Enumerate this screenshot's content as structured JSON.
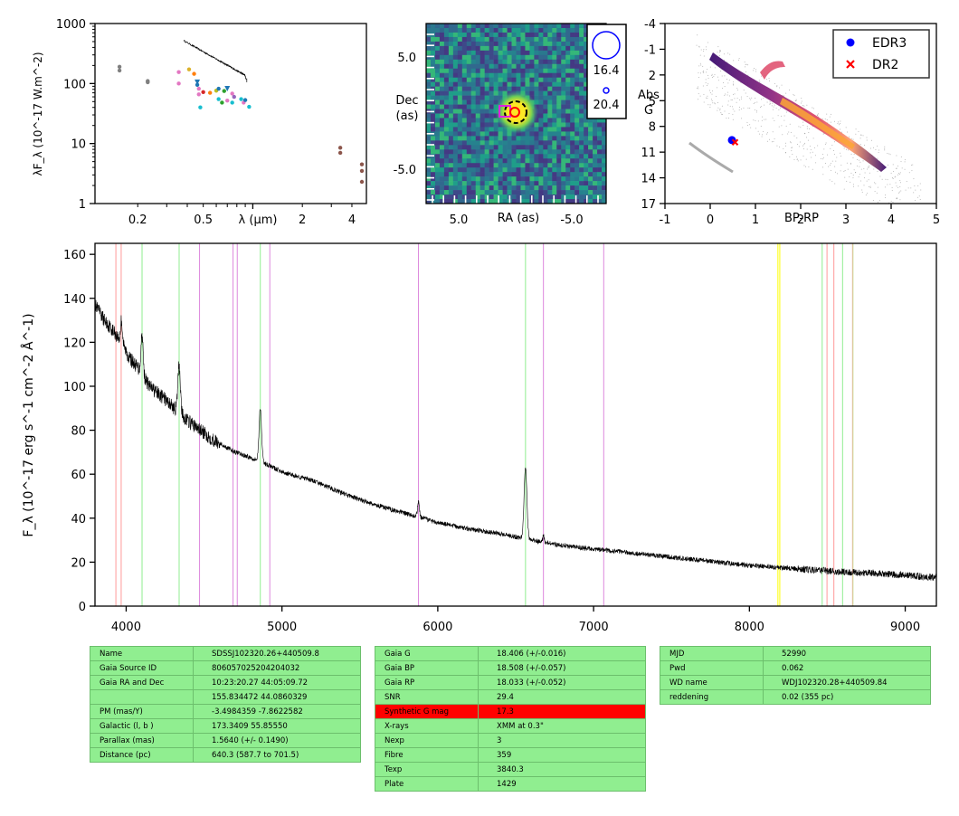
{
  "sed": {
    "ylabel": "λF_λ (10^-17 W.m^-2)",
    "xlabel": "λ (μm)",
    "ytick_labels": [
      "1",
      "10",
      "100",
      "1000"
    ],
    "xtick_labels": [
      "0.2",
      "0.5",
      "2",
      "4"
    ],
    "xtick_values": [
      0.2,
      0.5,
      2,
      4
    ],
    "ytick_values": [
      1,
      10,
      100,
      1000
    ],
    "xlim": [
      0.11,
      4.9
    ],
    "ylim": [
      1,
      1000
    ],
    "points": [
      {
        "x": 0.155,
        "y": 190,
        "c": "#7f7f7f"
      },
      {
        "x": 0.155,
        "y": 165,
        "c": "#7f7f7f"
      },
      {
        "x": 0.23,
        "y": 110,
        "c": "#7f7f7f"
      },
      {
        "x": 0.23,
        "y": 105,
        "c": "#7f7f7f"
      },
      {
        "x": 0.355,
        "y": 155,
        "c": "#e377c2"
      },
      {
        "x": 0.355,
        "y": 100,
        "c": "#e377c2"
      },
      {
        "x": 0.41,
        "y": 172,
        "c": "#dbb22b"
      },
      {
        "x": 0.44,
        "y": 145,
        "c": "#ff7f0e"
      },
      {
        "x": 0.46,
        "y": 95,
        "c": "#1f77b4"
      },
      {
        "x": 0.47,
        "y": 82,
        "c": "#e377c2"
      },
      {
        "x": 0.47,
        "y": 66,
        "c": "#e377c2"
      },
      {
        "x": 0.48,
        "y": 40,
        "c": "#17becf"
      },
      {
        "x": 0.5,
        "y": 72,
        "c": "#d62728"
      },
      {
        "x": 0.55,
        "y": 70,
        "c": "#ff7f0e"
      },
      {
        "x": 0.6,
        "y": 76,
        "c": "#bcbd22"
      },
      {
        "x": 0.62,
        "y": 82,
        "c": "#1f77b4"
      },
      {
        "x": 0.62,
        "y": 55,
        "c": "#17becf"
      },
      {
        "x": 0.65,
        "y": 48,
        "c": "#2ca02c"
      },
      {
        "x": 0.67,
        "y": 75,
        "c": "#2ca02c"
      },
      {
        "x": 0.7,
        "y": 52,
        "c": "#e377c2"
      },
      {
        "x": 0.75,
        "y": 68,
        "c": "#e377c2"
      },
      {
        "x": 0.75,
        "y": 48,
        "c": "#17becf"
      },
      {
        "x": 0.77,
        "y": 60,
        "c": "#9467bd"
      },
      {
        "x": 0.85,
        "y": 55,
        "c": "#17becf"
      },
      {
        "x": 0.88,
        "y": 48,
        "c": "#e377c2"
      },
      {
        "x": 0.9,
        "y": 53,
        "c": "#1f77b4"
      },
      {
        "x": 0.95,
        "y": 41,
        "c": "#17becf"
      },
      {
        "x": 3.4,
        "y": 8.5,
        "c": "#8c564b"
      },
      {
        "x": 3.4,
        "y": 7,
        "c": "#8c564b"
      },
      {
        "x": 4.6,
        "y": 4.5,
        "c": "#8c564b"
      },
      {
        "x": 4.6,
        "y": 3.5,
        "c": "#8c564b"
      },
      {
        "x": 4.6,
        "y": 2.3,
        "c": "#8c564b"
      }
    ],
    "triangles": [
      {
        "x": 0.46,
        "y": 105,
        "c": "#1f77b4"
      },
      {
        "x": 0.7,
        "y": 82,
        "c": "#1f77b4"
      }
    ]
  },
  "image_panel": {
    "xlabel": "RA (as)",
    "ylabel_line1": "Dec",
    "ylabel_line2": "(as)",
    "xtick_labels": [
      "5.0",
      "-5.0"
    ],
    "ytick_labels": [
      "5.0",
      "-5.0"
    ],
    "legend_values": [
      "16.4",
      "20.4"
    ]
  },
  "hr": {
    "xlabel": "BP-RP",
    "ylabel_line1": "Abs",
    "ylabel_line2": "G",
    "xtick_labels": [
      "-1",
      "0",
      "1",
      "2",
      "3",
      "4",
      "5"
    ],
    "xtick_values": [
      -1,
      0,
      1,
      2,
      3,
      4,
      5
    ],
    "ytick_labels": [
      "-4",
      "-1",
      "2",
      "5",
      "8",
      "11",
      "14",
      "17"
    ],
    "ytick_values": [
      -4,
      -1,
      2,
      5,
      8,
      11,
      14,
      17
    ],
    "xlim": [
      -1,
      5
    ],
    "ylim": [
      -4,
      17
    ],
    "legend": [
      {
        "label": "EDR3",
        "color": "#0000ff",
        "marker": "circle"
      },
      {
        "label": "DR2",
        "color": "#ff0000",
        "marker": "x"
      }
    ],
    "edr3": {
      "x": 0.48,
      "y": 9.6
    },
    "dr2": {
      "x": 0.55,
      "y": 9.85
    }
  },
  "chart_data": {
    "type": "line",
    "xlabel": "",
    "ylabel": "F_λ (10^-17 erg s^-1 cm^-2 Å^-1)",
    "xlim": [
      3800,
      9200
    ],
    "ylim": [
      0,
      165
    ],
    "xtick_values": [
      4000,
      5000,
      6000,
      7000,
      8000,
      9000
    ],
    "xtick_labels": [
      "4000",
      "5000",
      "6000",
      "7000",
      "8000",
      "9000"
    ],
    "ytick_values": [
      0,
      20,
      40,
      60,
      80,
      100,
      120,
      140,
      160
    ],
    "ytick_labels": [
      "0",
      "20",
      "40",
      "60",
      "80",
      "100",
      "120",
      "140",
      "160"
    ],
    "continuum": [
      [
        3800,
        137
      ],
      [
        3860,
        130
      ],
      [
        3920,
        125
      ],
      [
        3970,
        120
      ],
      [
        4020,
        113
      ],
      [
        4080,
        108
      ],
      [
        4150,
        100
      ],
      [
        4250,
        94
      ],
      [
        4400,
        84
      ],
      [
        4550,
        76
      ],
      [
        4700,
        70
      ],
      [
        4860,
        66
      ],
      [
        5000,
        61
      ],
      [
        5200,
        57
      ],
      [
        5400,
        51
      ],
      [
        5600,
        46
      ],
      [
        5800,
        42
      ],
      [
        6000,
        38
      ],
      [
        6200,
        35
      ],
      [
        6400,
        33
      ],
      [
        6600,
        30
      ],
      [
        6800,
        27.5
      ],
      [
        7000,
        26
      ],
      [
        7200,
        24.5
      ],
      [
        7400,
        23
      ],
      [
        7600,
        21.5
      ],
      [
        7800,
        20
      ],
      [
        8000,
        18.5
      ],
      [
        8200,
        17.5
      ],
      [
        8400,
        16.5
      ],
      [
        8600,
        15.5
      ],
      [
        8800,
        15
      ],
      [
        9000,
        14
      ],
      [
        9200,
        13
      ]
    ],
    "emission_lines": [
      {
        "x": 3970,
        "amp": 10,
        "w": 6
      },
      {
        "x": 4102,
        "amp": 18,
        "w": 7
      },
      {
        "x": 4340,
        "amp": 22,
        "w": 8
      },
      {
        "x": 4861,
        "amp": 24,
        "w": 8
      },
      {
        "x": 5876,
        "amp": 7,
        "w": 6
      },
      {
        "x": 6563,
        "amp": 33,
        "w": 9
      },
      {
        "x": 6678,
        "amp": 3,
        "w": 5
      }
    ],
    "marker_lines": [
      {
        "x": 3934,
        "c": "#ff9999"
      },
      {
        "x": 3968,
        "c": "#ff9999"
      },
      {
        "x": 4102,
        "c": "#90ee90"
      },
      {
        "x": 4340,
        "c": "#90ee90"
      },
      {
        "x": 4471,
        "c": "#dd88dd"
      },
      {
        "x": 4686,
        "c": "#dd88dd"
      },
      {
        "x": 4713,
        "c": "#dd88dd"
      },
      {
        "x": 4861,
        "c": "#90ee90"
      },
      {
        "x": 4922,
        "c": "#dd88dd"
      },
      {
        "x": 5876,
        "c": "#dd88dd"
      },
      {
        "x": 6563,
        "c": "#90ee90"
      },
      {
        "x": 6678,
        "c": "#dd88dd"
      },
      {
        "x": 7065,
        "c": "#dd88dd"
      },
      {
        "x": 8183,
        "c": "#ffff00"
      },
      {
        "x": 8195,
        "c": "#ffff00"
      },
      {
        "x": 8467,
        "c": "#90ee90"
      },
      {
        "x": 8498,
        "c": "#ff9999"
      },
      {
        "x": 8542,
        "c": "#ff9999"
      },
      {
        "x": 8598,
        "c": "#90ee90"
      },
      {
        "x": 8662,
        "c": "#ff9999"
      },
      {
        "x": 8665,
        "c": "#c8e6a0"
      }
    ]
  },
  "tables": {
    "left": [
      [
        "Name",
        "SDSSJ102320.26+440509.8"
      ],
      [
        "Gaia Source ID",
        "806057025204204032"
      ],
      [
        "Gaia RA and Dec",
        "10:23:20.27    44:05:09.72"
      ],
      [
        "",
        "155.834472    44.0860329"
      ],
      [
        "PM (mas/Y)",
        "-3.4984359    -7.8622582"
      ],
      [
        "Galactic (l, b )",
        "173.3409    55.85550"
      ],
      [
        "Parallax (mas)",
        "1.5640 (+/- 0.1490)"
      ],
      [
        "Distance (pc)",
        "640.3 (587.7 to 701.5)"
      ]
    ],
    "middle": [
      [
        "Gaia G",
        "18.406 (+/-0.016)"
      ],
      [
        "Gaia BP",
        "18.508 (+/-0.057)"
      ],
      [
        "Gaia RP",
        "18.033 (+/-0.052)"
      ],
      [
        "SNR",
        "29.4"
      ],
      [
        "Synthetic G mag",
        "17.3"
      ],
      [
        "X-rays",
        "XMM at 0.3\""
      ],
      [
        "Nexp",
        "3"
      ],
      [
        "Fibre",
        "359"
      ],
      [
        "Texp",
        "3840.3"
      ],
      [
        "Plate",
        "1429"
      ]
    ],
    "right": [
      [
        "MJD",
        "52990"
      ],
      [
        "Pwd",
        "0.062"
      ],
      [
        "WD name",
        "WDJ102320.28+440509.84"
      ],
      [
        "reddening",
        "0.02 (355 pc)"
      ]
    ],
    "highlight_color": "#ff0000",
    "cell_color": "#90ee90"
  }
}
